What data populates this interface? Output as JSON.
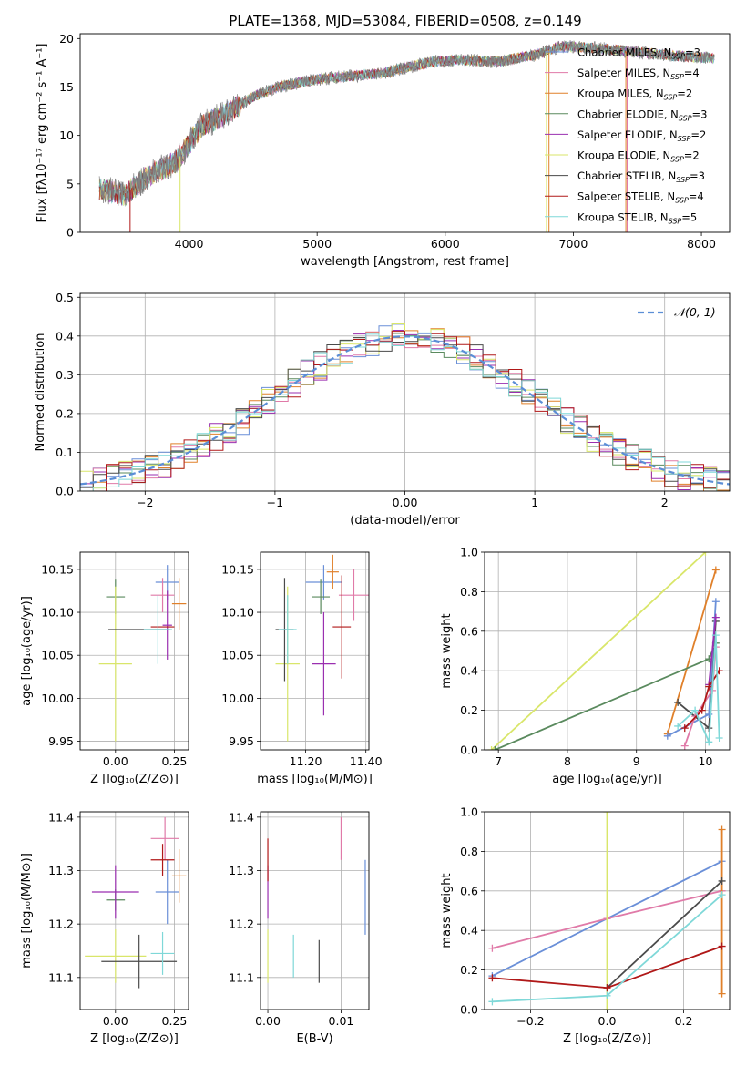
{
  "figure_title": "PLATE=1368, MJD=53084, FIBERID=0508, z=0.149",
  "palette": {
    "Chabrier MILES": "#6a8fd8",
    "Salpeter MILES": "#e07aa8",
    "Kroupa MILES": "#e0802a",
    "Chabrier ELODIE": "#5a8a5e",
    "Salpeter ELODIE": "#9a2fb0",
    "Kroupa ELODIE": "#d9e66a",
    "Chabrier STELIB": "#4a4a4a",
    "Salpeter STELIB": "#b01818",
    "Kroupa STELIB": "#7fd8d8"
  },
  "legend_entries": [
    {
      "name": "Chabrier MILES",
      "nssp": "3"
    },
    {
      "name": "Salpeter MILES",
      "nssp": "4"
    },
    {
      "name": "Kroupa MILES",
      "nssp": "2"
    },
    {
      "name": "Chabrier ELODIE",
      "nssp": "3"
    },
    {
      "name": "Salpeter ELODIE",
      "nssp": "2"
    },
    {
      "name": "Kroupa ELODIE",
      "nssp": "2"
    },
    {
      "name": "Chabrier STELIB",
      "nssp": "3"
    },
    {
      "name": "Salpeter STELIB",
      "nssp": "4"
    },
    {
      "name": "Kroupa STELIB",
      "nssp": "5"
    }
  ],
  "chart_data": [
    {
      "id": "spectrum",
      "type": "line",
      "xlabel": "wavelength [Angstrom, rest frame]",
      "ylabel": "Flux [fλ10⁻¹⁷ erg cm⁻² s⁻¹ A⁻¹]",
      "xlim": [
        3150,
        8220
      ],
      "ylim": [
        0,
        20.5
      ],
      "xticks": [
        4000,
        5000,
        6000,
        7000,
        8000
      ],
      "yticks": [
        0,
        5,
        10,
        15,
        20
      ],
      "continuum": [
        [
          3300,
          4.5
        ],
        [
          3500,
          3.9
        ],
        [
          3700,
          6.0
        ],
        [
          3900,
          7.3
        ],
        [
          4100,
          11.0
        ],
        [
          4300,
          12.3
        ],
        [
          4500,
          14.0
        ],
        [
          4700,
          15.0
        ],
        [
          5000,
          15.8
        ],
        [
          5500,
          16.4
        ],
        [
          5900,
          17.6
        ],
        [
          6100,
          17.8
        ],
        [
          6400,
          17.6
        ],
        [
          6700,
          18.3
        ],
        [
          6900,
          19.2
        ],
        [
          7200,
          19.0
        ],
        [
          7500,
          18.6
        ],
        [
          7800,
          18.2
        ],
        [
          8100,
          18.0
        ]
      ],
      "vertical_spikes": [
        {
          "x": 3540,
          "model": "Salpeter STELIB"
        },
        {
          "x": 3930,
          "model": "Kroupa ELODIE"
        },
        {
          "x": 6790,
          "model": "Kroupa ELODIE"
        },
        {
          "x": 6810,
          "model": "Kroupa MILES"
        },
        {
          "x": 7410,
          "model": "Kroupa MILES"
        },
        {
          "x": 7420,
          "model": "Salpeter MILES"
        }
      ],
      "grid": false,
      "legend_position": "upper right"
    },
    {
      "id": "residuals",
      "type": "step-histogram",
      "xlabel": "(data-model)/error",
      "ylabel": "Normed distribution",
      "xlim": [
        -2.5,
        2.5
      ],
      "ylim": [
        0,
        0.51
      ],
      "xticks": [
        -2,
        -1,
        0,
        1,
        2
      ],
      "yticks": [
        0.0,
        0.1,
        0.2,
        0.3,
        0.4,
        0.5
      ],
      "bin_width": 0.1,
      "gaussian_label": "𝒩(0, 1)",
      "gaussian_color": "#5b8ed6",
      "grid": true,
      "legend_position": "upper right"
    },
    {
      "id": "age_vs_Z",
      "type": "errorbar",
      "xlabel": "Z [log₁₀(Z/Z⊙)]",
      "ylabel": "age  [log₁₀(age/yr)]",
      "xlim": [
        -0.15,
        0.31
      ],
      "ylim": [
        9.94,
        10.17
      ],
      "xticks": [
        0.0,
        0.25
      ],
      "yticks": [
        9.95,
        10.0,
        10.05,
        10.1,
        10.15
      ],
      "points": [
        {
          "model": "Chabrier MILES",
          "x": 0.22,
          "y": 10.135,
          "xerr": 0.05,
          "yerr": 0.02
        },
        {
          "model": "Salpeter MILES",
          "x": 0.2,
          "y": 10.12,
          "xerr": 0.05,
          "yerr": 0.02
        },
        {
          "model": "Kroupa MILES",
          "x": 0.27,
          "y": 10.11,
          "xerr": 0.03,
          "yerr": 0.03
        },
        {
          "model": "Chabrier ELODIE",
          "x": 0.0,
          "y": 10.118,
          "xerr": 0.04,
          "yerr": 0.02
        },
        {
          "model": "Salpeter ELODIE",
          "x": 0.22,
          "y": 10.085,
          "xerr": 0.02,
          "yerr": 0.04
        },
        {
          "model": "Kroupa ELODIE",
          "x": 0.0,
          "y": 10.04,
          "xerr": 0.07,
          "yerr": 0.09
        },
        {
          "model": "Chabrier STELIB",
          "x": 0.1,
          "y": 10.08,
          "xerr": 0.13,
          "yerr": 0.0
        },
        {
          "model": "Salpeter STELIB",
          "x": 0.2,
          "y": 10.083,
          "xerr": 0.05,
          "yerr": 0.0
        },
        {
          "model": "Kroupa STELIB",
          "x": 0.18,
          "y": 10.08,
          "xerr": 0.06,
          "yerr": 0.04
        }
      ],
      "grid": true
    },
    {
      "id": "age_vs_mass",
      "type": "errorbar",
      "xlabel": "mass [log₁₀(M/M⊙)]",
      "ylabel": "",
      "xlim": [
        11.05,
        11.41
      ],
      "ylim": [
        9.94,
        10.17
      ],
      "xticks": [
        11.2,
        11.4
      ],
      "yticks": [
        9.95,
        10.0,
        10.05,
        10.1,
        10.15
      ],
      "points": [
        {
          "model": "Chabrier MILES",
          "x": 11.26,
          "y": 10.135,
          "xerr": 0.06,
          "yerr": 0.02
        },
        {
          "model": "Salpeter MILES",
          "x": 11.36,
          "y": 10.12,
          "xerr": 0.05,
          "yerr": 0.03
        },
        {
          "model": "Kroupa MILES",
          "x": 11.29,
          "y": 10.147,
          "xerr": 0.02,
          "yerr": 0.02
        },
        {
          "model": "Chabrier ELODIE",
          "x": 11.25,
          "y": 10.118,
          "xerr": 0.03,
          "yerr": 0.02
        },
        {
          "model": "Salpeter ELODIE",
          "x": 11.26,
          "y": 10.04,
          "xerr": 0.04,
          "yerr": 0.06
        },
        {
          "model": "Kroupa ELODIE",
          "x": 11.14,
          "y": 10.04,
          "xerr": 0.04,
          "yerr": 0.09
        },
        {
          "model": "Chabrier STELIB",
          "x": 11.13,
          "y": 10.08,
          "xerr": 0.03,
          "yerr": 0.06
        },
        {
          "model": "Salpeter STELIB",
          "x": 11.32,
          "y": 10.083,
          "xerr": 0.03,
          "yerr": 0.06
        },
        {
          "model": "Kroupa STELIB",
          "x": 11.14,
          "y": 10.08,
          "xerr": 0.03,
          "yerr": 0.04
        }
      ],
      "grid": true
    },
    {
      "id": "mass_weight_vs_age",
      "type": "line",
      "xlabel": "age  [log₁₀(age/yr)]",
      "ylabel": "mass weight",
      "xlim": [
        6.8,
        10.35
      ],
      "ylim": [
        0,
        1.0
      ],
      "xticks": [
        7,
        8,
        9,
        10
      ],
      "yticks": [
        0.0,
        0.2,
        0.4,
        0.6,
        0.8,
        1.0
      ],
      "series": [
        {
          "model": "Kroupa MILES",
          "points": [
            [
              9.45,
              0.08
            ],
            [
              10.15,
              0.91
            ]
          ]
        },
        {
          "model": "Kroupa ELODIE",
          "points": [
            [
              6.9,
              0.0
            ],
            [
              10.0,
              1.0
            ]
          ]
        },
        {
          "model": "Chabrier ELODIE",
          "points": [
            [
              6.95,
              0.0
            ],
            [
              10.05,
              0.46
            ],
            [
              10.15,
              0.54
            ]
          ]
        },
        {
          "model": "Chabrier STELIB",
          "points": [
            [
              9.6,
              0.24
            ],
            [
              10.05,
              0.11
            ],
            [
              10.15,
              0.65
            ]
          ]
        },
        {
          "model": "Chabrier MILES",
          "points": [
            [
              9.45,
              0.07
            ],
            [
              10.05,
              0.18
            ],
            [
              10.15,
              0.75
            ]
          ]
        },
        {
          "model": "Salpeter MILES",
          "points": [
            [
              9.7,
              0.02
            ],
            [
              9.85,
              0.17
            ],
            [
              10.1,
              0.3
            ],
            [
              10.15,
              0.52
            ]
          ]
        },
        {
          "model": "Salpeter ELODIE",
          "points": [
            [
              10.05,
              0.33
            ],
            [
              10.15,
              0.67
            ]
          ]
        },
        {
          "model": "Salpeter STELIB",
          "points": [
            [
              9.7,
              0.11
            ],
            [
              9.95,
              0.2
            ],
            [
              10.05,
              0.32
            ],
            [
              10.2,
              0.4
            ]
          ]
        },
        {
          "model": "Kroupa STELIB",
          "points": [
            [
              9.6,
              0.12
            ],
            [
              9.85,
              0.2
            ],
            [
              10.05,
              0.04
            ],
            [
              10.15,
              0.58
            ],
            [
              10.2,
              0.06
            ]
          ]
        }
      ],
      "grid": true
    },
    {
      "id": "mass_vs_Z",
      "type": "errorbar",
      "xlabel": "Z [log₁₀(Z/Z⊙)]",
      "ylabel": "mass [log₁₀(M/M⊙)]",
      "xlim": [
        -0.15,
        0.31
      ],
      "ylim": [
        11.04,
        11.41
      ],
      "xticks": [
        0.0,
        0.25
      ],
      "yticks": [
        11.1,
        11.2,
        11.3,
        11.4
      ],
      "points": [
        {
          "model": "Chabrier MILES",
          "x": 0.22,
          "y": 11.26,
          "xerr": 0.05,
          "yerr": 0.06
        },
        {
          "model": "Salpeter MILES",
          "x": 0.21,
          "y": 11.36,
          "xerr": 0.06,
          "yerr": 0.04
        },
        {
          "model": "Kroupa MILES",
          "x": 0.27,
          "y": 11.29,
          "xerr": 0.03,
          "yerr": 0.05
        },
        {
          "model": "Chabrier ELODIE",
          "x": 0.0,
          "y": 11.245,
          "xerr": 0.04,
          "yerr": 0.02
        },
        {
          "model": "Salpeter ELODIE",
          "x": 0.0,
          "y": 11.26,
          "xerr": 0.1,
          "yerr": 0.05
        },
        {
          "model": "Kroupa ELODIE",
          "x": 0.0,
          "y": 11.14,
          "xerr": 0.13,
          "yerr": 0.05
        },
        {
          "model": "Chabrier STELIB",
          "x": 0.1,
          "y": 11.13,
          "xerr": 0.16,
          "yerr": 0.05
        },
        {
          "model": "Salpeter STELIB",
          "x": 0.2,
          "y": 11.32,
          "xerr": 0.05,
          "yerr": 0.03
        },
        {
          "model": "Kroupa STELIB",
          "x": 0.2,
          "y": 11.145,
          "xerr": 0.05,
          "yerr": 0.04
        }
      ],
      "grid": true
    },
    {
      "id": "mass_vs_ebv",
      "type": "errorbar",
      "xlabel": "E(B-V)",
      "ylabel": "",
      "xlim": [
        -0.001,
        0.0138
      ],
      "ylim": [
        11.04,
        11.41
      ],
      "xticks": [
        0.0,
        0.01
      ],
      "yticks": [
        11.1,
        11.2,
        11.3,
        11.4
      ],
      "points": [
        {
          "model": "Chabrier MILES",
          "x": 0.0133,
          "y": 11.25,
          "xerr": 0.0,
          "yerr": 0.07
        },
        {
          "model": "Salpeter MILES",
          "x": 0.01,
          "y": 11.36,
          "xerr": 0.0,
          "yerr": 0.04
        },
        {
          "model": "Salpeter ELODIE",
          "x": 0.0,
          "y": 11.26,
          "xerr": 0.0,
          "yerr": 0.05
        },
        {
          "model": "Salpeter STELIB",
          "x": 0.0,
          "y": 11.32,
          "xerr": 0.0,
          "yerr": 0.04
        },
        {
          "model": "Kroupa ELODIE",
          "x": 0.0,
          "y": 11.14,
          "xerr": 0.0,
          "yerr": 0.05
        },
        {
          "model": "Kroupa STELIB",
          "x": 0.0035,
          "y": 11.14,
          "xerr": 0.0,
          "yerr": 0.04
        },
        {
          "model": "Chabrier STELIB",
          "x": 0.007,
          "y": 11.13,
          "xerr": 0.0,
          "yerr": 0.04
        }
      ],
      "grid": true
    },
    {
      "id": "mass_weight_vs_Z",
      "type": "line",
      "xlabel": "Z [log₁₀(Z/Z⊙)]",
      "ylabel": "mass weight",
      "xlim": [
        -0.32,
        0.32
      ],
      "ylim": [
        0,
        1.0
      ],
      "xticks": [
        -0.2,
        0.0,
        0.2
      ],
      "yticks": [
        0.0,
        0.2,
        0.4,
        0.6,
        0.8,
        1.0
      ],
      "series": [
        {
          "model": "Chabrier MILES",
          "points": [
            [
              -0.3,
              0.17
            ],
            [
              0.0,
              0.46
            ],
            [
              0.3,
              0.75
            ]
          ]
        },
        {
          "model": "Salpeter MILES",
          "points": [
            [
              -0.3,
              0.31
            ],
            [
              0.0,
              0.46
            ],
            [
              0.3,
              0.6
            ]
          ]
        },
        {
          "model": "Kroupa MILES",
          "points": [
            [
              0.3,
              0.08
            ],
            [
              0.3,
              0.91
            ]
          ]
        },
        {
          "model": "Kroupa ELODIE",
          "points": [
            [
              0.0,
              0.0
            ],
            [
              0.0,
              1.0
            ]
          ]
        },
        {
          "model": "Chabrier STELIB",
          "points": [
            [
              0.0,
              0.11
            ],
            [
              0.3,
              0.65
            ]
          ]
        },
        {
          "model": "Salpeter STELIB",
          "points": [
            [
              -0.3,
              0.16
            ],
            [
              0.0,
              0.11
            ],
            [
              0.3,
              0.32
            ]
          ]
        },
        {
          "model": "Kroupa STELIB",
          "points": [
            [
              -0.3,
              0.04
            ],
            [
              0.0,
              0.07
            ],
            [
              0.3,
              0.58
            ]
          ]
        }
      ],
      "grid": true
    }
  ]
}
